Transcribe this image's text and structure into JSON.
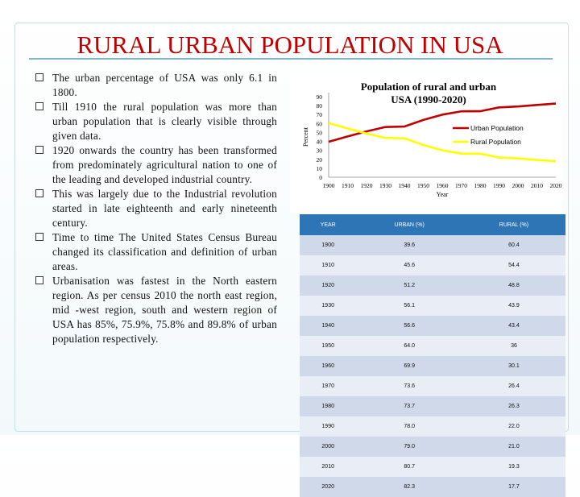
{
  "title": "RURAL URBAN POPULATION IN USA",
  "bullets": [
    "The urban percentage of USA was only 6.1 in 1800.",
    "Till 1910 the rural population was more than urban population that is clearly visible through given data.",
    "1920 onwards the country has been transformed from predominately agricultural nation to one of the leading and developed industrial country.",
    "This was largely due to the Industrial revolution started in late eighteenth and early nineteenth century.",
    "Time to time The United States Census Bureau changed its classification and definition of urban areas.",
    "Urbanisation was fastest in the North eastern region. As per census 2010 the north east region, mid -west region, south and western region of USA has 85%, 75.9%, 75.8% and 89.8%  of urban population respectively."
  ],
  "chart_data": {
    "type": "line",
    "title": "Population of rural and urban USA (1990-2020)",
    "xlabel": "Year",
    "ylabel": "Percent",
    "ylim": [
      0,
      90
    ],
    "yticks": [
      "0",
      "10",
      "20",
      "30",
      "40",
      "50",
      "60",
      "70",
      "80",
      "90"
    ],
    "x": [
      "1900",
      "1910",
      "1920",
      "1930",
      "1940",
      "1950",
      "1960",
      "1970",
      "1980",
      "1990",
      "2000",
      "2010",
      "2020"
    ],
    "series": [
      {
        "name": "Urban Population",
        "color": "#c00000",
        "values": [
          39.6,
          45.6,
          51.2,
          56.1,
          56.6,
          64.0,
          69.9,
          73.6,
          73.7,
          78.0,
          79.0,
          80.7,
          82.3
        ]
      },
      {
        "name": "Rural Population",
        "color": "#ffff00",
        "values": [
          60.4,
          54.4,
          48.8,
          43.9,
          43.4,
          36,
          30.1,
          26.4,
          26.3,
          22.0,
          21.0,
          19.3,
          17.7
        ]
      }
    ],
    "legend_position": "right"
  },
  "table": {
    "headers": [
      "YEAR",
      "URBAN (%)",
      "RURAL (%)"
    ],
    "rows": [
      [
        "1900",
        "39.6",
        "60.4"
      ],
      [
        "1910",
        "45.6",
        "54.4"
      ],
      [
        "1920",
        "51.2",
        "48.8"
      ],
      [
        "1930",
        "56.1",
        "43.9"
      ],
      [
        "1940",
        "56.6",
        "43.4"
      ],
      [
        "1950",
        "64.0",
        "36"
      ],
      [
        "1960",
        "69.9",
        "30.1"
      ],
      [
        "1970",
        "73.6",
        "26.4"
      ],
      [
        "1980",
        "73.7",
        "26.3"
      ],
      [
        "1990",
        "78.0",
        "22.0"
      ],
      [
        "2000",
        "79.0",
        "21.0"
      ],
      [
        "2010",
        "80.7",
        "19.3"
      ],
      [
        "2020",
        "82.3",
        "17.7"
      ]
    ]
  }
}
